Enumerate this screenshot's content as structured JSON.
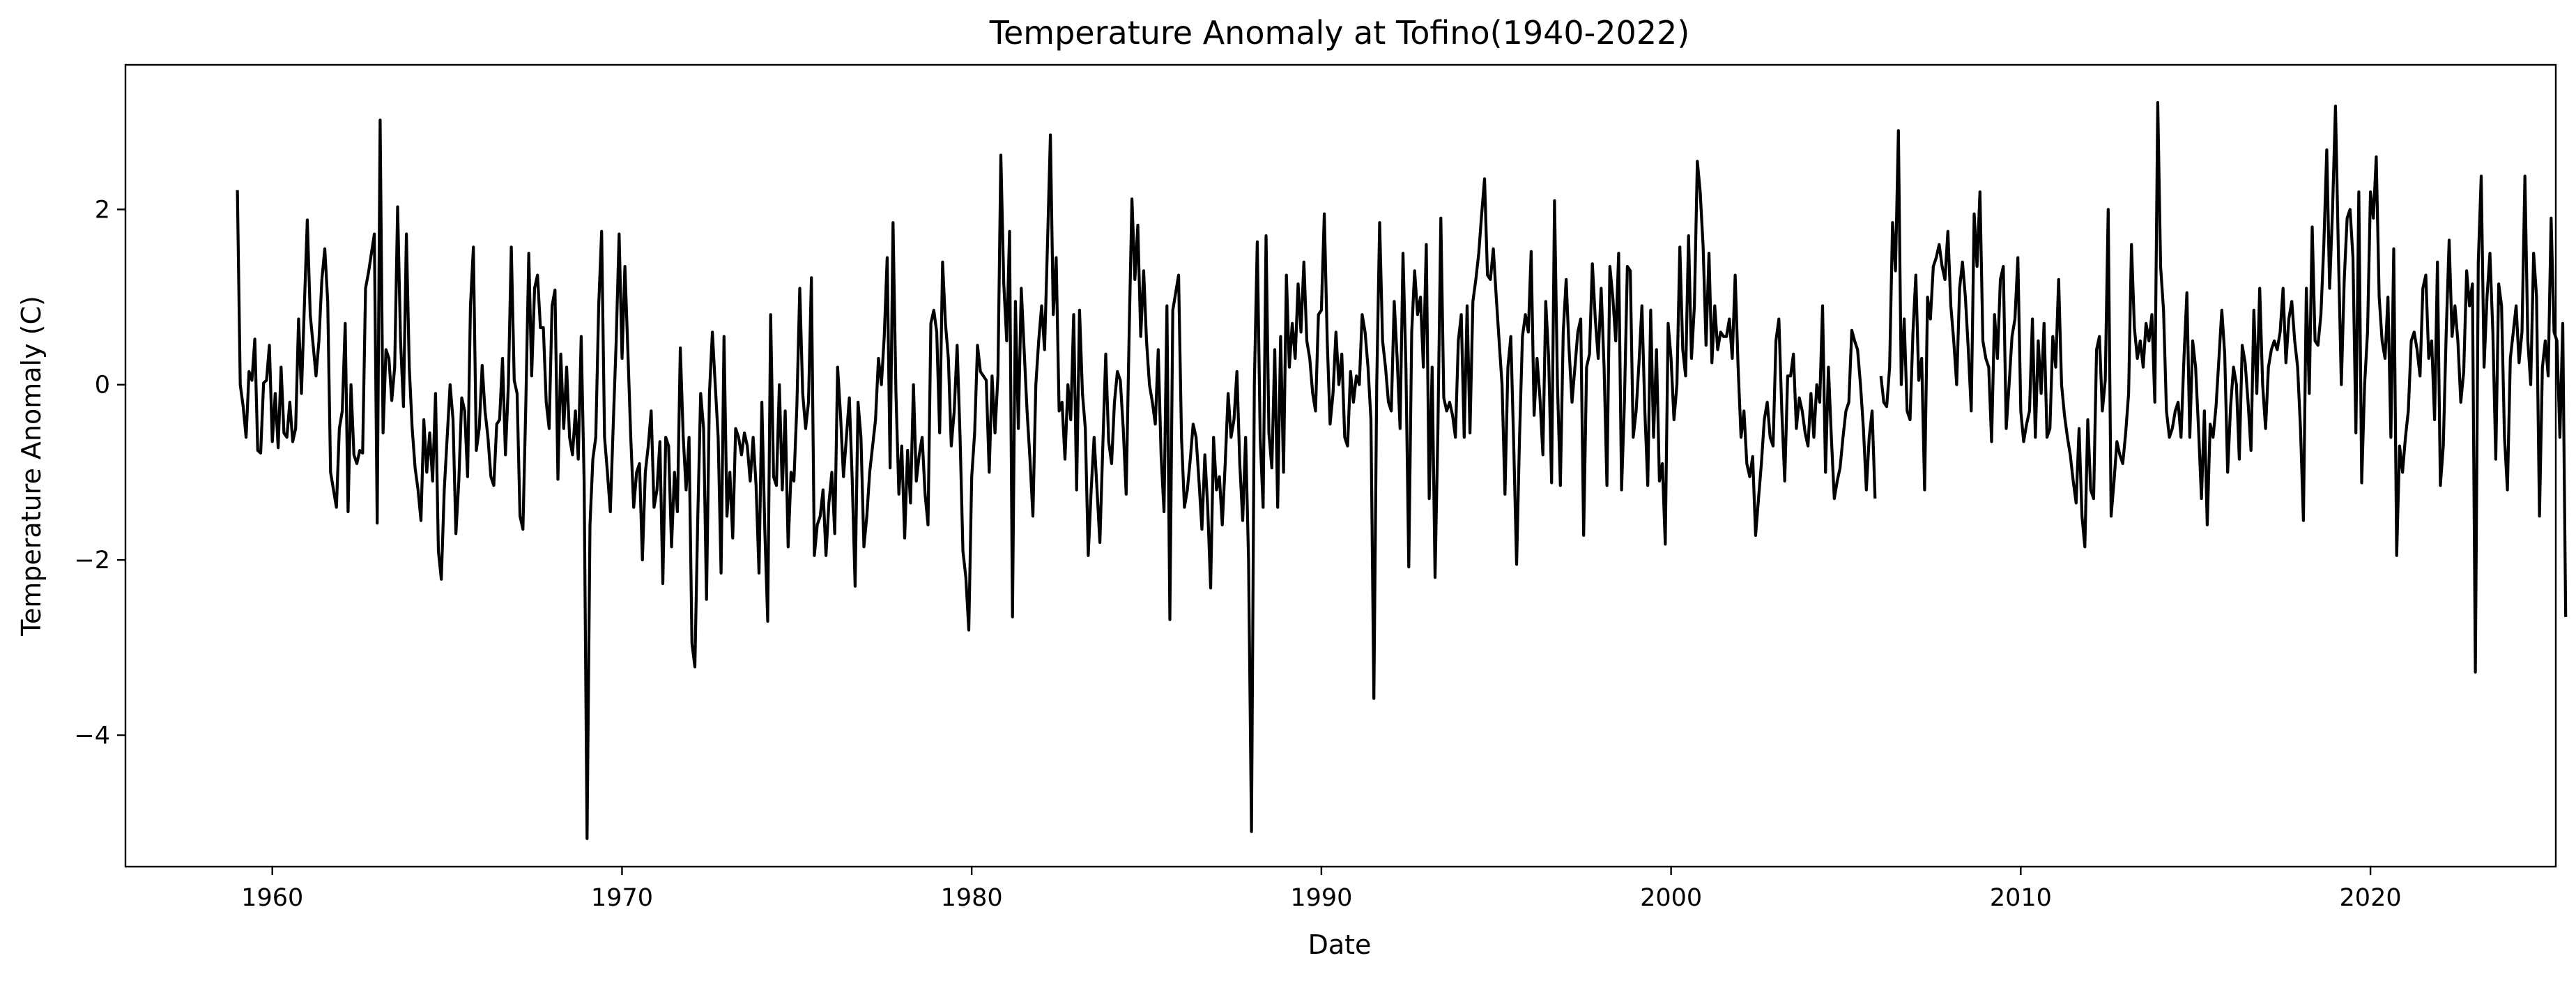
{
  "chart_data": {
    "type": "line",
    "title": "Temperature Anomaly at Tofino(1940-2022)",
    "xlabel": "Date",
    "ylabel": "Temperature Anomaly (C)",
    "xlim": [
      1955.8,
      2025.3
    ],
    "ylim": [
      -5.5,
      3.65
    ],
    "x_ticks": [
      1960,
      1970,
      1980,
      1990,
      2000,
      2010,
      2020
    ],
    "x_tick_labels": [
      "1960",
      "1970",
      "1980",
      "1990",
      "2000",
      "2010",
      "2020"
    ],
    "y_ticks": [
      2,
      0,
      -2,
      -4
    ],
    "y_tick_labels": [
      "2",
      "0",
      "−2",
      "−4"
    ],
    "grid": false,
    "legend": "none",
    "line_color": "#000000",
    "series": [
      {
        "x_start": 1959.0,
        "x_step": 0.0833333,
        "values": [
          2.22,
          0.0,
          -0.25,
          -0.6,
          0.15,
          0.05,
          0.52,
          -0.75,
          -0.78,
          0.02,
          0.05,
          0.45,
          -0.65,
          -0.1,
          -0.72,
          0.2,
          -0.55,
          -0.6,
          -0.2,
          -0.65,
          -0.5,
          0.75,
          -0.1,
          0.9,
          1.88,
          0.8,
          0.45,
          0.1,
          0.5,
          1.2,
          1.55,
          0.95,
          -1.0,
          -1.2,
          -1.4,
          -0.5,
          -0.3,
          0.7,
          -1.45,
          0.0,
          -0.8,
          -0.9,
          -0.75,
          -0.78,
          1.1,
          1.28,
          1.5,
          1.72,
          -1.58,
          3.02,
          -0.55,
          0.4,
          0.3,
          -0.18,
          0.2,
          2.03,
          0.5,
          -0.25,
          1.72,
          0.2,
          -0.5,
          -0.95,
          -1.2,
          -1.55,
          -0.4,
          -1.0,
          -0.55,
          -1.1,
          -0.1,
          -1.9,
          -2.22,
          -1.2,
          -0.6,
          0.0,
          -0.4,
          -1.7,
          -1.1,
          -0.15,
          -0.3,
          -1.05,
          0.9,
          1.57,
          -0.75,
          -0.5,
          0.22,
          -0.3,
          -0.6,
          -1.05,
          -1.15,
          -0.45,
          -0.4,
          0.3,
          -0.8,
          0.0,
          1.57,
          0.05,
          -0.1,
          -1.5,
          -1.65,
          -0.2,
          1.5,
          0.1,
          1.1,
          1.25,
          0.65,
          0.65,
          -0.2,
          -0.5,
          0.9,
          1.08,
          -1.08,
          0.35,
          -0.5,
          0.2,
          -0.6,
          -0.8,
          -0.3,
          -0.85,
          0.55,
          -1.1,
          -5.18,
          -1.6,
          -0.85,
          -0.6,
          0.9,
          1.75,
          -0.6,
          -1.0,
          -1.45,
          -0.45,
          0.5,
          1.72,
          0.3,
          1.35,
          0.4,
          -0.6,
          -1.4,
          -1.0,
          -0.9,
          -2.0,
          -1.0,
          -0.7,
          -0.3,
          -1.4,
          -1.2,
          -0.65,
          -2.27,
          -0.6,
          -0.7,
          -1.85,
          -1.0,
          -1.45,
          0.42,
          -0.6,
          -1.2,
          -0.6,
          -2.95,
          -3.22,
          -1.5,
          -0.1,
          -0.5,
          -2.45,
          -0.1,
          0.6,
          0.0,
          -0.6,
          -2.15,
          0.55,
          -1.5,
          -1.0,
          -1.75,
          -0.5,
          -0.6,
          -0.8,
          -0.55,
          -0.7,
          -1.1,
          -0.6,
          -1.15,
          -2.15,
          -0.2,
          -1.65,
          -2.7,
          0.8,
          -1.05,
          -1.15,
          0.0,
          -1.2,
          -0.3,
          -1.85,
          -1.0,
          -1.1,
          -0.25,
          1.1,
          -0.1,
          -0.5,
          -0.2,
          1.22,
          -1.95,
          -1.6,
          -1.5,
          -1.2,
          -1.95,
          -1.35,
          -1.0,
          -1.7,
          0.2,
          -0.35,
          -1.05,
          -0.6,
          -0.15,
          -1.1,
          -2.3,
          -0.2,
          -0.6,
          -1.85,
          -1.5,
          -1.0,
          -0.7,
          -0.4,
          0.3,
          0.0,
          0.55,
          1.45,
          -0.95,
          1.85,
          -0.1,
          -1.25,
          -0.7,
          -1.75,
          -0.75,
          -1.35,
          0.0,
          -1.1,
          -0.8,
          -0.6,
          -1.25,
          -1.6,
          0.7,
          0.85,
          0.6,
          -0.55,
          1.4,
          0.7,
          0.3,
          -0.7,
          -0.3,
          0.45,
          -0.6,
          -1.9,
          -2.2,
          -2.8,
          -1.05,
          -0.55,
          0.45,
          0.15,
          0.1,
          0.05,
          -1.0,
          0.1,
          -0.55,
          0.1,
          2.62,
          1.15,
          0.5,
          1.75,
          -2.65,
          0.95,
          -0.5,
          1.1,
          0.4,
          -0.3,
          -0.85,
          -1.5,
          0.0,
          0.5,
          0.9,
          0.4,
          1.6,
          2.85,
          0.8,
          1.45,
          -0.3,
          -0.2,
          -0.85,
          0.0,
          -0.4,
          0.8,
          -1.2,
          0.85,
          -0.1,
          -0.5,
          -1.95,
          -1.2,
          -0.6,
          -1.2,
          -1.8,
          -0.7,
          0.35,
          -0.65,
          -0.9,
          -0.2,
          0.15,
          0.05,
          -0.5,
          -1.25,
          0.55,
          2.12,
          1.2,
          1.82,
          0.55,
          1.3,
          0.5,
          0.0,
          -0.2,
          -0.45,
          0.4,
          -0.8,
          -1.45,
          0.9,
          -2.68,
          0.85,
          1.05,
          1.25,
          -0.6,
          -1.4,
          -1.2,
          -0.85,
          -0.45,
          -0.6,
          -1.1,
          -1.65,
          -0.8,
          -1.4,
          -2.32,
          -0.6,
          -1.2,
          -1.05,
          -1.6,
          -0.9,
          -0.1,
          -0.6,
          -0.4,
          0.15,
          -0.9,
          -1.55,
          -0.6,
          -2.0,
          -5.1,
          0.0,
          1.63,
          -0.6,
          -1.4,
          1.7,
          -0.55,
          -0.95,
          0.4,
          -1.4,
          0.55,
          -1.0,
          1.25,
          0.2,
          0.7,
          0.3,
          1.15,
          0.6,
          1.4,
          0.5,
          0.3,
          -0.1,
          -0.3,
          0.8,
          0.85,
          1.95,
          0.5,
          -0.45,
          -0.1,
          0.6,
          0.0,
          0.35,
          -0.6,
          -0.7,
          0.15,
          -0.2,
          0.1,
          0.0,
          0.8,
          0.6,
          0.2,
          -0.4,
          -3.58,
          0.0,
          1.85,
          0.5,
          0.2,
          -0.2,
          -0.3,
          0.95,
          0.3,
          -0.5,
          1.5,
          0.2,
          -2.08,
          0.6,
          1.3,
          0.8,
          1.0,
          0.2,
          1.6,
          -1.3,
          0.2,
          -2.2,
          -0.5,
          1.9,
          -0.15,
          -0.3,
          -0.2,
          -0.35,
          -0.6,
          0.5,
          0.8,
          -0.6,
          0.9,
          -0.55,
          0.95,
          1.2,
          1.5,
          1.95,
          2.35,
          1.25,
          1.2,
          1.55,
          1.0,
          0.5,
          0.0,
          -1.25,
          0.2,
          0.55,
          -0.7,
          -2.05,
          -0.6,
          0.55,
          0.8,
          0.6,
          1.52,
          -0.35,
          0.3,
          -0.15,
          -0.8,
          0.95,
          0.3,
          -1.12,
          2.1,
          0.0,
          -1.15,
          0.6,
          1.2,
          0.4,
          -0.2,
          0.2,
          0.6,
          0.75,
          -1.72,
          0.2,
          0.35,
          1.38,
          0.75,
          0.3,
          1.1,
          0.2,
          -1.15,
          1.35,
          1.0,
          0.5,
          1.5,
          -1.2,
          -0.2,
          1.35,
          1.3,
          -0.6,
          -0.3,
          0.25,
          0.9,
          -0.3,
          -1.15,
          0.85,
          -0.6,
          0.4,
          -1.1,
          -0.9,
          -1.82,
          0.7,
          0.3,
          -0.4,
          0.0,
          1.57,
          0.4,
          0.1,
          1.7,
          0.3,
          0.9,
          2.55,
          2.2,
          1.58,
          0.45,
          1.5,
          0.25,
          0.9,
          0.4,
          0.6,
          0.55,
          0.55,
          0.75,
          0.3,
          1.25,
          0.2,
          -0.6,
          -0.3,
          -0.9,
          -1.05,
          -0.82,
          -1.72,
          -1.3,
          -0.9,
          -0.4,
          -0.2,
          -0.6,
          -0.7,
          0.5,
          0.75,
          -0.3,
          -1.1,
          0.1,
          0.1,
          0.35,
          -0.5,
          -0.15,
          -0.3,
          -0.55,
          -0.7,
          -0.1,
          -0.6,
          0.0,
          -0.2,
          0.9,
          -1.0,
          0.2,
          -0.6,
          -1.3,
          -1.1,
          -0.95,
          -0.6,
          -0.3,
          -0.2,
          0.62,
          0.5,
          0.4,
          0.0,
          -0.5,
          -1.2,
          -0.6,
          -0.3,
          -1.3,
          null,
          0.1,
          -0.2,
          -0.25,
          0.2,
          1.85,
          1.3,
          2.9,
          0.0,
          0.75,
          -0.3,
          -0.4,
          0.6,
          1.25,
          0.05,
          0.3,
          -1.2,
          1.0,
          0.75,
          1.35,
          1.45,
          1.6,
          1.35,
          1.2,
          1.75,
          0.9,
          0.5,
          0.0,
          1.1,
          1.4,
          1.0,
          0.4,
          -0.3,
          1.95,
          1.35,
          2.2,
          0.5,
          0.3,
          0.2,
          -0.65,
          0.8,
          0.3,
          1.2,
          1.35,
          -0.5,
          0.0,
          0.55,
          0.75,
          1.45,
          -0.3,
          -0.65,
          -0.45,
          -0.3,
          0.75,
          -0.6,
          0.5,
          -0.1,
          0.7,
          -0.6,
          -0.5,
          0.55,
          0.2,
          1.2,
          0.0,
          -0.35,
          -0.6,
          -0.8,
          -1.1,
          -1.35,
          -0.5,
          -1.5,
          -1.85,
          -0.4,
          -1.2,
          -1.3,
          0.4,
          0.55,
          -0.3,
          0.05,
          2.0,
          -1.5,
          -1.1,
          -0.65,
          -0.8,
          -0.9,
          -0.55,
          -0.1,
          1.6,
          0.65,
          0.3,
          0.5,
          0.2,
          0.7,
          0.5,
          0.8,
          -0.2,
          3.22,
          1.35,
          0.85,
          -0.3,
          -0.6,
          -0.5,
          -0.3,
          -0.2,
          -0.6,
          0.3,
          1.05,
          -0.6,
          0.5,
          0.2,
          -0.5,
          -1.3,
          -0.3,
          -1.6,
          -0.45,
          -0.6,
          -0.25,
          0.3,
          0.85,
          0.35,
          -1.0,
          -0.25,
          0.2,
          0.0,
          -0.85,
          0.45,
          0.25,
          -0.2,
          -0.75,
          0.85,
          -0.1,
          1.1,
          0.0,
          -0.5,
          0.2,
          0.4,
          0.5,
          0.4,
          0.6,
          1.1,
          0.25,
          0.75,
          0.95,
          0.5,
          0.2,
          -0.5,
          -1.55,
          1.1,
          -0.1,
          1.8,
          0.5,
          0.45,
          0.8,
          1.6,
          2.68,
          1.1,
          2.0,
          3.18,
          1.5,
          0.0,
          1.2,
          1.9,
          2.0,
          1.45,
          -0.55,
          2.2,
          -1.12,
          0.0,
          0.6,
          2.2,
          1.9,
          2.6,
          1.0,
          0.5,
          0.3,
          1.0,
          -0.6,
          1.55,
          -1.95,
          -0.7,
          -1.0,
          -0.6,
          -0.3,
          0.5,
          0.6,
          0.4,
          0.1,
          1.1,
          1.25,
          0.3,
          0.5,
          -0.4,
          1.4,
          -1.15,
          -0.7,
          0.6,
          1.65,
          0.55,
          0.9,
          0.5,
          -0.2,
          0.15,
          1.3,
          0.9,
          1.15,
          -3.28,
          1.4,
          2.38,
          0.2,
          1.0,
          1.5,
          0.6,
          -0.85,
          1.15,
          0.9,
          -0.6,
          -1.2,
          0.3,
          0.6,
          0.9,
          0.25,
          0.6,
          2.38,
          0.5,
          0.0,
          1.5,
          1.0,
          -1.5,
          0.2,
          0.5,
          0.1,
          1.9,
          0.6,
          0.5,
          -0.6,
          0.7,
          -2.65
        ]
      }
    ]
  }
}
